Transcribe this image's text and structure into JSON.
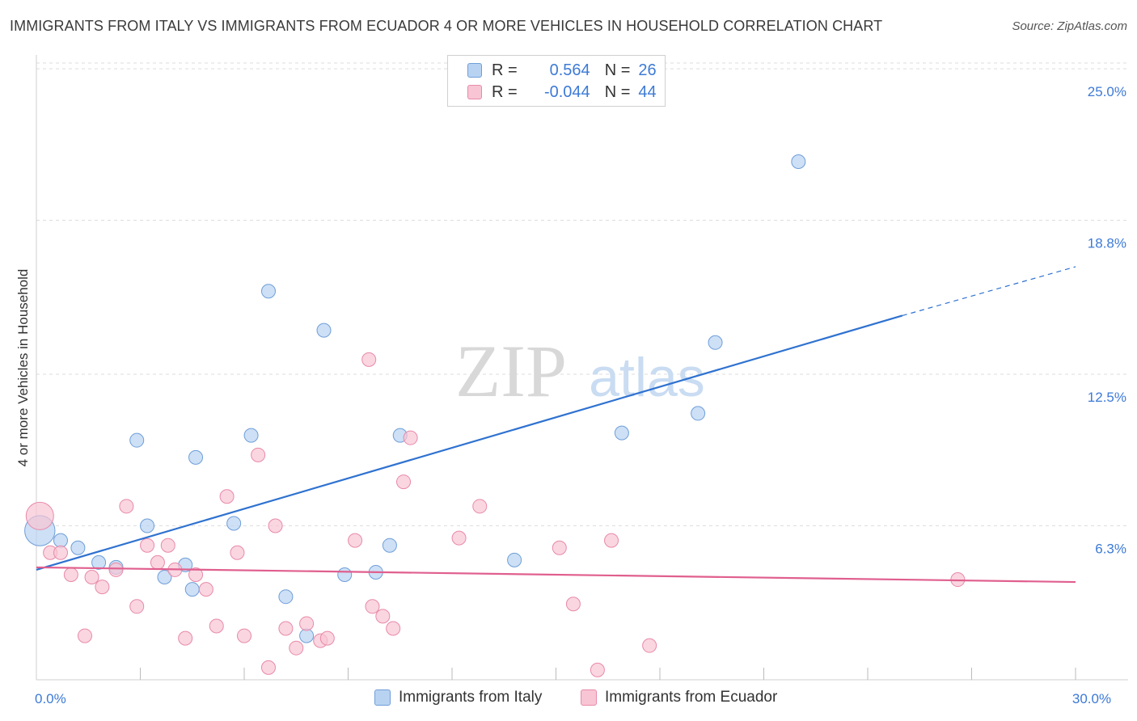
{
  "title": "IMMIGRANTS FROM ITALY VS IMMIGRANTS FROM ECUADOR 4 OR MORE VEHICLES IN HOUSEHOLD CORRELATION CHART",
  "source": "Source: ZipAtlas.com",
  "watermark": {
    "zip": "ZIP",
    "atlas": "atlas"
  },
  "legend": {
    "italy": {
      "r_label": "R =",
      "r_value": "0.564",
      "n_label": "N =",
      "n_value": "26"
    },
    "ecuador": {
      "r_label": "R =",
      "r_value": "-0.044",
      "n_label": "N =",
      "n_value": "44"
    }
  },
  "colors": {
    "italy_fill": "#b8d3f2",
    "italy_stroke": "#6f9ed8",
    "italy_line": "#2f72d0",
    "ecuador_fill": "#f8c5d4",
    "ecuador_stroke": "#e88aa8",
    "ecuador_line": "#e05f8e",
    "grid": "#dddddd",
    "tick_text": "#3d7ad6"
  },
  "chart_data": {
    "type": "scatter",
    "title": "IMMIGRANTS FROM ITALY VS IMMIGRANTS FROM ECUADOR 4 OR MORE VEHICLES IN HOUSEHOLD CORRELATION CHART",
    "xlabel": "",
    "ylabel": "4 or more Vehicles in Household",
    "xlim": [
      0,
      30
    ],
    "ylim": [
      0,
      25.4
    ],
    "y_ticks": [
      {
        "value": 6.3,
        "label": "6.3%"
      },
      {
        "value": 12.5,
        "label": "12.5%"
      },
      {
        "value": 18.8,
        "label": "18.8%"
      },
      {
        "value": 25.0,
        "label": "25.0%"
      }
    ],
    "x_tick_labels": [
      {
        "value": 0,
        "label": "0.0%"
      },
      {
        "value": 30,
        "label": "30.0%"
      }
    ],
    "x_minor_ticks": [
      3,
      6,
      9,
      12,
      15,
      18,
      21,
      24,
      27,
      30
    ],
    "grid": true,
    "series": [
      {
        "name": "Immigrants from Italy",
        "points": [
          [
            0.1,
            6.1,
            2.2
          ],
          [
            0.7,
            5.7,
            1
          ],
          [
            1.2,
            5.4,
            1
          ],
          [
            1.8,
            4.8,
            1
          ],
          [
            2.3,
            4.6,
            1
          ],
          [
            2.9,
            9.8,
            1
          ],
          [
            3.2,
            6.3,
            1
          ],
          [
            3.7,
            4.2,
            1
          ],
          [
            4.3,
            4.7,
            1
          ],
          [
            4.5,
            3.7,
            1
          ],
          [
            4.6,
            9.1,
            1
          ],
          [
            5.7,
            6.4,
            1
          ],
          [
            6.2,
            10.0,
            1
          ],
          [
            6.7,
            15.9,
            1
          ],
          [
            7.2,
            3.4,
            1
          ],
          [
            7.8,
            1.8,
            1
          ],
          [
            8.3,
            14.3,
            1
          ],
          [
            8.9,
            4.3,
            1
          ],
          [
            9.8,
            4.4,
            1
          ],
          [
            10.2,
            5.5,
            1
          ],
          [
            10.5,
            10.0,
            1
          ],
          [
            13.8,
            4.9,
            1
          ],
          [
            16.9,
            10.1,
            1
          ],
          [
            19.1,
            10.9,
            1
          ],
          [
            19.6,
            13.8,
            1
          ],
          [
            22.0,
            21.2,
            1
          ]
        ],
        "trend": {
          "x0": 0,
          "y0": 4.5,
          "x1": 25.0,
          "y1": 14.9,
          "dash_x1": 30.0,
          "dash_y1": 16.9
        }
      },
      {
        "name": "Immigrants from Ecuador",
        "points": [
          [
            0.1,
            6.7,
            2.0
          ],
          [
            0.4,
            5.2,
            1
          ],
          [
            0.7,
            5.2,
            1
          ],
          [
            1.0,
            4.3,
            1
          ],
          [
            1.4,
            1.8,
            1
          ],
          [
            1.6,
            4.2,
            1
          ],
          [
            1.9,
            3.8,
            1
          ],
          [
            2.3,
            4.5,
            1
          ],
          [
            2.6,
            7.1,
            1
          ],
          [
            2.9,
            3.0,
            1
          ],
          [
            3.2,
            5.5,
            1
          ],
          [
            3.5,
            4.8,
            1
          ],
          [
            3.8,
            5.5,
            1
          ],
          [
            4.0,
            4.5,
            1
          ],
          [
            4.3,
            1.7,
            1
          ],
          [
            4.6,
            4.3,
            1
          ],
          [
            4.9,
            3.7,
            1
          ],
          [
            5.2,
            2.2,
            1
          ],
          [
            5.5,
            7.5,
            1
          ],
          [
            5.8,
            5.2,
            1
          ],
          [
            6.0,
            1.8,
            1
          ],
          [
            6.4,
            9.2,
            1
          ],
          [
            6.7,
            0.5,
            1
          ],
          [
            6.9,
            6.3,
            1
          ],
          [
            7.2,
            2.1,
            1
          ],
          [
            7.5,
            1.3,
            1
          ],
          [
            7.8,
            2.3,
            1
          ],
          [
            8.2,
            1.6,
            1
          ],
          [
            8.4,
            1.7,
            1
          ],
          [
            9.2,
            5.7,
            1
          ],
          [
            9.6,
            13.1,
            1
          ],
          [
            9.7,
            3.0,
            1
          ],
          [
            10.0,
            2.6,
            1
          ],
          [
            10.3,
            2.1,
            1
          ],
          [
            10.6,
            8.1,
            1
          ],
          [
            10.8,
            9.9,
            1
          ],
          [
            12.2,
            5.8,
            1
          ],
          [
            12.8,
            7.1,
            1
          ],
          [
            15.1,
            5.4,
            1
          ],
          [
            15.5,
            3.1,
            1
          ],
          [
            16.2,
            0.4,
            1
          ],
          [
            16.6,
            5.7,
            1
          ],
          [
            17.7,
            1.4,
            1
          ],
          [
            26.6,
            4.1,
            1
          ]
        ],
        "trend": {
          "x0": 0,
          "y0": 4.6,
          "x1": 30.0,
          "y1": 4.0
        }
      }
    ]
  },
  "bottom_legend": {
    "italy": "Immigrants from Italy",
    "ecuador": "Immigrants from Ecuador"
  }
}
